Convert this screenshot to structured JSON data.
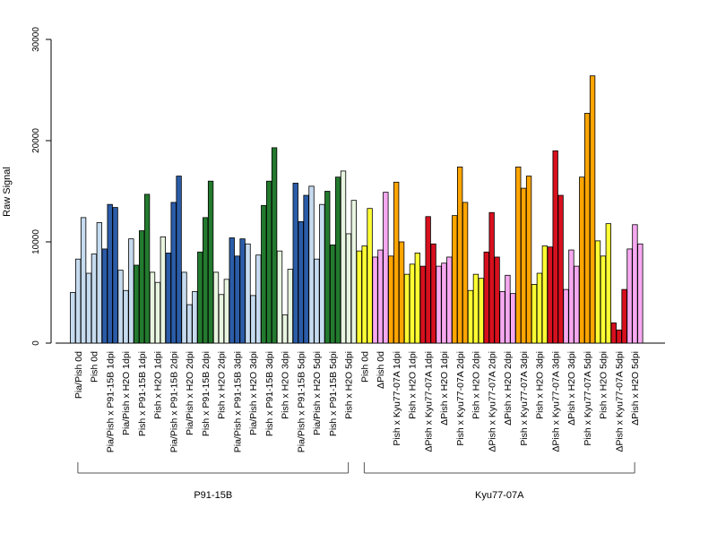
{
  "chart_data": {
    "type": "bar",
    "title": "",
    "xlabel": "",
    "ylabel": "Raw Signal",
    "ylim": [
      0,
      30000
    ],
    "yticks": [
      0,
      10000,
      20000,
      30000
    ],
    "grid": false,
    "bars_per_group": 3,
    "categories": [
      "Pia/Pish 0d",
      "Pish 0d",
      "Pia/Pish x P91-15B 1dpi",
      "Pia/Pish x H2O 1dpi",
      "Pish x P91-15B 1dpi",
      "Pish x H2O 1dpi",
      "Pia/Pish x P91-15B 2dpi",
      "Pia/Pish x H2O 2dpi",
      "Pish x P91-15B 2dpi",
      "Pish x H2O 2dpi",
      "Pia/Pish x P91-15B 3dpi",
      "Pia/Pish x H2O 3dpi",
      "Pish x P91-15B 3dpi",
      "Pish x H2O 3dpi",
      "Pia/Pish x P91-15B 5dpi",
      "Pia/Pish x H2O 5dpi",
      "Pish x P91-15B 5dpi",
      "Pish x H2O 5dpi",
      "Pish 0d",
      "ΔPish 0d",
      "Pish x Kyu77-07A 1dpi",
      "Pish x H2O 1dpi",
      "ΔPish x Kyu77-07A 1dpi",
      "ΔPish x H2O 1dpi",
      "Pish x Kyu77-07A 2dpi",
      "Pish x H2O 2dpi",
      "ΔPish x Kyu77-07A 2dpi",
      "ΔPish x H2O 2dpi",
      "Pish x Kyu77-07A 3dpi",
      "Pish x H2O 3dpi",
      "ΔPish x Kyu77-07A 3dpi",
      "ΔPish x H2O 3dpi",
      "Pish x Kyu77-07A 5dpi",
      "Pish x H2O 5dpi",
      "ΔPish x Kyu77-07A 5dpi",
      "ΔPish x H2O 5dpi"
    ],
    "bar_colors": [
      "#c6dbef",
      "#c6dbef",
      "#2b5ca8",
      "#c6dbef",
      "#237a2e",
      "#e8f5e0",
      "#2b5ca8",
      "#c6dbef",
      "#237a2e",
      "#e8f5e0",
      "#2b5ca8",
      "#c6dbef",
      "#237a2e",
      "#e8f5e0",
      "#2b5ca8",
      "#c6dbef",
      "#237a2e",
      "#e8f5e0",
      "#ffff33",
      "#f6a8f0",
      "#ffa500",
      "#ffff33",
      "#d7101e",
      "#f6a8f0",
      "#ffa500",
      "#ffff33",
      "#d7101e",
      "#f6a8f0",
      "#ffa500",
      "#ffff33",
      "#d7101e",
      "#f6a8f0",
      "#ffa500",
      "#ffff33",
      "#d7101e",
      "#f6a8f0"
    ],
    "values": [
      [
        5000,
        8300,
        12400
      ],
      [
        6900,
        8800,
        11900
      ],
      [
        9300,
        13700,
        13400
      ],
      [
        7200,
        5200,
        10300
      ],
      [
        7700,
        11100,
        14700
      ],
      [
        7000,
        6000,
        10500
      ],
      [
        8900,
        13900,
        16500
      ],
      [
        7000,
        3800,
        5100
      ],
      [
        9000,
        12400,
        16000
      ],
      [
        7000,
        4800,
        6300
      ],
      [
        10400,
        8600,
        10300
      ],
      [
        9800,
        4700,
        8700
      ],
      [
        13600,
        16000,
        19300
      ],
      [
        9100,
        2800,
        7300
      ],
      [
        15800,
        12000,
        14600
      ],
      [
        15500,
        8300,
        13700
      ],
      [
        15000,
        9700,
        16400
      ],
      [
        17000,
        10800,
        14100
      ],
      [
        9100,
        9600,
        13300
      ],
      [
        8500,
        9200,
        14900
      ],
      [
        8600,
        15900,
        10000
      ],
      [
        6800,
        7800,
        8900
      ],
      [
        7600,
        12500,
        9800
      ],
      [
        7600,
        7900,
        8500
      ],
      [
        12600,
        17400,
        13900
      ],
      [
        5200,
        6800,
        6400
      ],
      [
        9000,
        12900,
        8500
      ],
      [
        5100,
        6700,
        4900
      ],
      [
        17400,
        15300,
        16500
      ],
      [
        5800,
        6900,
        9600
      ],
      [
        9500,
        19000,
        14600
      ],
      [
        5300,
        9200,
        7600
      ],
      [
        16400,
        22700,
        26400
      ],
      [
        10100,
        8600,
        11800
      ],
      [
        2000,
        1300,
        5300
      ],
      [
        9300,
        11700,
        9800
      ]
    ],
    "groups": [
      {
        "label": "P91-15B",
        "start": 0,
        "end": 17
      },
      {
        "label": "Kyu77-07A",
        "start": 18,
        "end": 35
      }
    ]
  }
}
